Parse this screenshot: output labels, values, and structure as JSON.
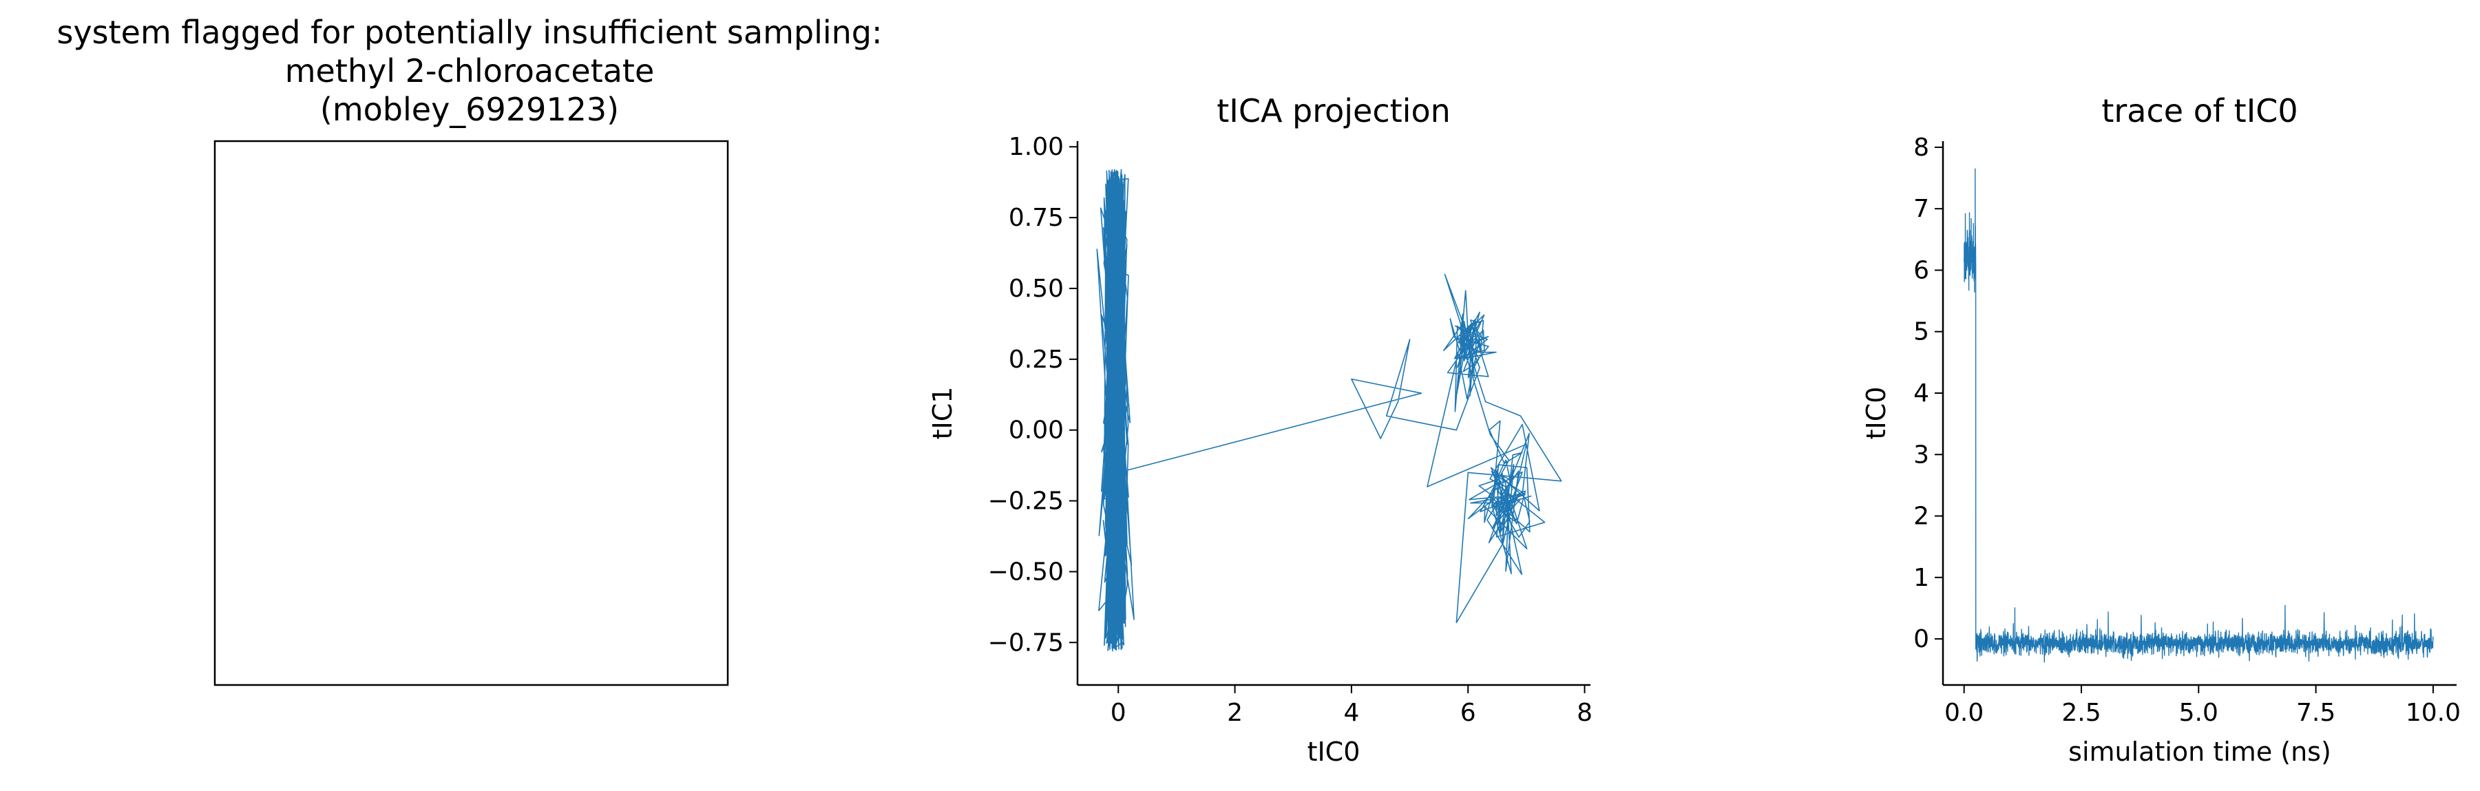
{
  "colors": {
    "series": "#1f77b4",
    "axes": "#000000"
  },
  "chart_data": [
    {
      "type": "image",
      "title_lines": [
        "system flagged for potentially insufficient sampling:",
        "methyl 2-chloroacetate",
        "(mobley_6929123)"
      ]
    },
    {
      "type": "line",
      "title": "tICA projection",
      "xlabel": "tIC0",
      "ylabel": "tIC1",
      "xlim": [
        -0.7,
        8.1
      ],
      "ylim": [
        -0.9,
        1.02
      ],
      "xticks": [
        0,
        2,
        4,
        6,
        8
      ],
      "xtick_labels": [
        "0",
        "2",
        "4",
        "6",
        "8"
      ],
      "yticks": [
        -0.75,
        -0.5,
        -0.25,
        0.0,
        0.25,
        0.5,
        0.75,
        1.0
      ],
      "ytick_labels": [
        "−0.75",
        "−0.50",
        "−0.25",
        "0.00",
        "0.25",
        "0.50",
        "0.75",
        "1.00"
      ],
      "clusters": [
        {
          "x_center": -0.05,
          "x_spread": 0.14,
          "y_min": -0.78,
          "y_max": 0.92,
          "points": 1500
        },
        {
          "x_center": 6.0,
          "x_spread": 0.25,
          "y_center": 0.3,
          "y_spread": 0.1,
          "points": 70
        },
        {
          "x_center": 6.65,
          "x_spread": 0.35,
          "y_center": -0.25,
          "y_spread": 0.13,
          "points": 90
        }
      ],
      "series": [
        {
          "values_xy": [
            [
              0.0,
              -0.15
            ],
            [
              5.2,
              0.13
            ],
            [
              4.0,
              0.18
            ],
            [
              4.5,
              -0.03
            ],
            [
              4.8,
              0.1
            ],
            [
              5.0,
              0.32
            ],
            [
              4.6,
              0.05
            ],
            [
              5.8,
              0.0
            ],
            [
              6.2,
              0.22
            ],
            [
              5.6,
              0.55
            ],
            [
              6.3,
              0.1
            ],
            [
              6.9,
              0.05
            ],
            [
              7.6,
              -0.18
            ],
            [
              6.0,
              -0.15
            ],
            [
              5.8,
              -0.68
            ],
            [
              6.6,
              -0.4
            ],
            [
              7.0,
              -0.05
            ],
            [
              5.3,
              -0.2
            ]
          ]
        }
      ]
    },
    {
      "type": "line",
      "title": "trace of tIC0",
      "xlabel": "simulation time (ns)",
      "ylabel": "tIC0",
      "xlim": [
        -0.45,
        10.5
      ],
      "ylim": [
        -0.75,
        8.1
      ],
      "xticks": [
        0,
        2.5,
        5,
        7.5,
        10
      ],
      "xtick_labels": [
        "0.0",
        "2.5",
        "5.0",
        "7.5",
        "10.0"
      ],
      "yticks": [
        0,
        1,
        2,
        3,
        4,
        5,
        6,
        7,
        8
      ],
      "ytick_labels": [
        "0",
        "1",
        "2",
        "3",
        "4",
        "5",
        "6",
        "7",
        "8"
      ],
      "segments": [
        {
          "t_start": 0.0,
          "t_end": 0.25,
          "center": 6.2,
          "noise": 0.55,
          "peak": 7.65
        },
        {
          "t_start": 0.25,
          "t_end": 10.0,
          "center": -0.08,
          "noise": 0.1,
          "peak": 0.55
        }
      ]
    }
  ]
}
